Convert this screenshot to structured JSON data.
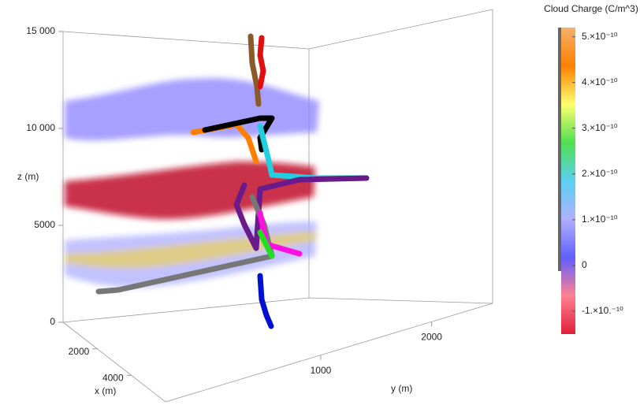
{
  "chart_data": {
    "type": "volume3d",
    "xlabel": "x (m)",
    "ylabel": "y (m)",
    "zlabel": "z (m)",
    "xlim": [
      0,
      6000
    ],
    "xticks": [
      2000,
      4000
    ],
    "ylim": [
      -400,
      2550
    ],
    "yticks": [
      1000,
      2000
    ],
    "zlim": [
      0,
      15000
    ],
    "zticks": [
      0,
      5000,
      {
        "value": 10000,
        "label": "10 000"
      },
      {
        "value": 15000,
        "label": "15 000"
      }
    ],
    "colorbar": {
      "title": "Cloud Charge (C/m^3)",
      "clim": [
        -1.5e-10,
        5.2e-10
      ],
      "colors": [
        "#e0203a",
        "#ff8090",
        "#6060ff",
        "#b0b0ff",
        "#5ad0f0",
        "#50e050",
        "#ffff70",
        "#ff8000",
        "#f5b06b"
      ],
      "ticks": [
        {
          "value": 5e-10,
          "label": "5.×10⁻¹⁰"
        },
        {
          "value": 4e-10,
          "label": "4.×10⁻¹⁰"
        },
        {
          "value": 3e-10,
          "label": "3.×10⁻¹⁰"
        },
        {
          "value": 2e-10,
          "label": "2.×10⁻¹⁰"
        },
        {
          "value": 1e-10,
          "label": "1.×10⁻¹⁰"
        },
        0,
        {
          "value": -1e-10,
          "label": "-1.×10.⁻¹⁰"
        }
      ]
    }
  }
}
